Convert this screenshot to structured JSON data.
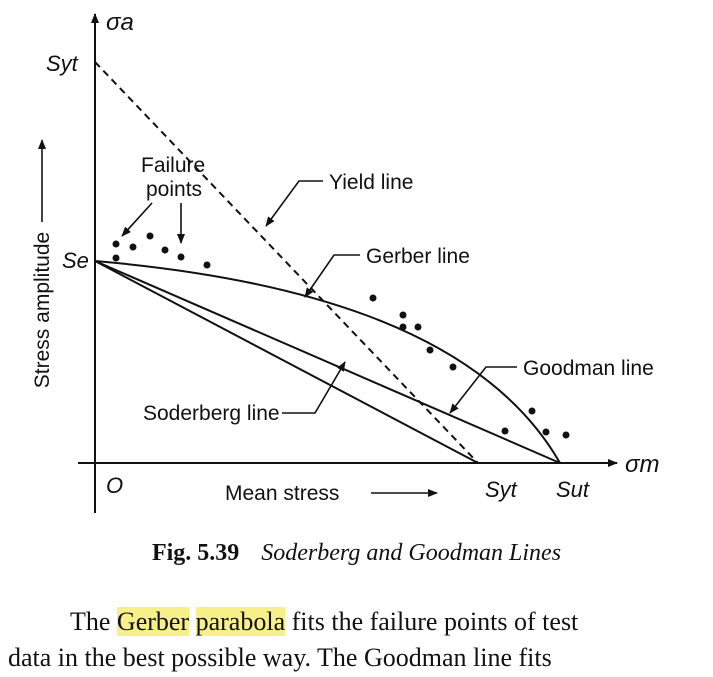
{
  "diagram": {
    "axis_labels": {
      "y_axis": "σa",
      "x_axis": "σm",
      "origin": "O",
      "vertical_title": "Stress amplitude",
      "horizontal_title": "Mean stress"
    },
    "point_labels": {
      "syt_y": "Syt",
      "se": "Se",
      "syt_x": "Syt",
      "sut": "Sut"
    },
    "annotations": {
      "failure_points_line1": "Failure",
      "failure_points_line2": "points",
      "yield_line": "Yield line",
      "gerber_line": "Gerber line",
      "goodman_line": "Goodman line",
      "soderberg_line": "Soderberg line"
    }
  },
  "caption": {
    "number": "Fig. 5.39",
    "title": "Soderberg and Goodman Lines"
  },
  "body": {
    "line1_before": "The ",
    "line1_highlight_1": "Gerber",
    "line1_highlight_2": "parabola",
    "line1_after": " fits the failure points of test",
    "line2": "data in the best possible way. The Goodman line fits"
  }
}
